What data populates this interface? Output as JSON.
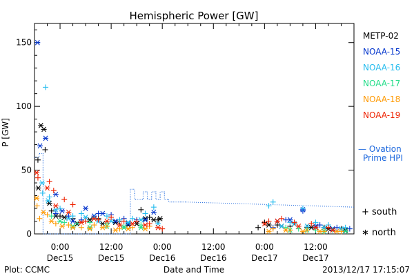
{
  "chart_data": {
    "type": "scatter",
    "title": "Hemispheric Power [GW]",
    "xlabel": "Date and Time",
    "ylabel": "P [GW]",
    "x_unit": "hours since 2013-12-14 18:00 UT",
    "xlim": [
      0,
      75
    ],
    "ylim": [
      0,
      165
    ],
    "y_ticks": [
      0,
      50,
      100,
      150
    ],
    "x_ticks": [
      {
        "x": 6,
        "time": "0:00",
        "date": "Dec15"
      },
      {
        "x": 18,
        "time": "12:00",
        "date": "Dec15"
      },
      {
        "x": 30,
        "time": "0:00",
        "date": "Dec16"
      },
      {
        "x": 42,
        "time": "12:00",
        "date": "Dec16"
      },
      {
        "x": 54,
        "time": "0:00",
        "date": "Dec17"
      },
      {
        "x": 66,
        "time": "12:00",
        "date": "Dec17"
      }
    ],
    "legend": [
      {
        "name": "METP-02",
        "color": "#000000"
      },
      {
        "name": "NOAA-15",
        "color": "#0033cc"
      },
      {
        "name": "NOAA-16",
        "color": "#22bbee"
      },
      {
        "name": "NOAA-17",
        "color": "#22dd88"
      },
      {
        "name": "NOAA-18",
        "color": "#ff9900"
      },
      {
        "name": "NOAA-19",
        "color": "#ee2200"
      }
    ],
    "ovation": {
      "label_line1": "— Ovation",
      "label_line2": "Prime HPI",
      "color": "#1a66dd",
      "value_y": 68,
      "solid_x": [
        0,
        1.1,
        1.1,
        2.0,
        2.0,
        22.5,
        22.5,
        23.5,
        23.5,
        25.5,
        25.5,
        26.5,
        26.5,
        27.5,
        27.5,
        28.5,
        28.5,
        29.5,
        29.5,
        30.5,
        30.5,
        31.5,
        31.5,
        35.5
      ],
      "solid_y": [
        60,
        60,
        63,
        63,
        0,
        0,
        35,
        35,
        27,
        27,
        33,
        33,
        27,
        27,
        33,
        33,
        27,
        27,
        33,
        33,
        27,
        27,
        25,
        25
      ],
      "dotted": [
        [
          35.5,
          25
        ],
        [
          75,
          21
        ]
      ]
    },
    "symbols_legend": [
      {
        "symbol": "+",
        "label": "south"
      },
      {
        "symbol": "∗",
        "label": "north"
      }
    ],
    "series": [
      {
        "name": "METP-02",
        "color": "#000000",
        "south": [
          [
            0.8,
            58
          ],
          [
            2.5,
            66
          ],
          [
            4,
            18
          ],
          [
            6,
            14
          ],
          [
            9,
            12
          ],
          [
            12,
            10
          ],
          [
            15,
            12
          ],
          [
            20,
            10
          ],
          [
            25,
            19
          ],
          [
            27,
            13
          ],
          [
            29,
            11
          ],
          [
            52.5,
            5
          ],
          [
            54,
            9
          ],
          [
            57,
            7
          ],
          [
            60,
            6
          ],
          [
            64,
            5
          ],
          [
            68,
            5
          ],
          [
            72,
            4
          ]
        ],
        "north": [
          [
            0.9,
            36
          ],
          [
            1.5,
            85
          ],
          [
            2.2,
            82
          ],
          [
            3.5,
            24
          ],
          [
            5,
            14
          ],
          [
            7,
            13
          ],
          [
            10,
            8
          ],
          [
            13,
            11
          ],
          [
            16,
            8
          ],
          [
            19,
            9
          ],
          [
            22,
            7
          ],
          [
            24,
            8
          ],
          [
            26,
            12
          ],
          [
            28,
            11
          ],
          [
            29.5,
            12
          ],
          [
            55,
            7
          ],
          [
            58,
            6
          ],
          [
            61,
            8
          ],
          [
            65,
            5
          ],
          [
            69,
            4
          ],
          [
            73,
            3
          ]
        ]
      },
      {
        "name": "NOAA-15",
        "color": "#0033cc",
        "south": [
          [
            5,
            16
          ],
          [
            8,
            14
          ],
          [
            11,
            11
          ],
          [
            15,
            16
          ],
          [
            18,
            15
          ],
          [
            21,
            12
          ],
          [
            24,
            11
          ],
          [
            56,
            5
          ],
          [
            59,
            11
          ],
          [
            63,
            18
          ],
          [
            67,
            7
          ],
          [
            71,
            5
          ],
          [
            74,
            4
          ]
        ],
        "north": [
          [
            0.7,
            150
          ],
          [
            1.3,
            69
          ],
          [
            2.6,
            75
          ],
          [
            5,
            31
          ],
          [
            6.5,
            18
          ],
          [
            9,
            10
          ],
          [
            12,
            20
          ],
          [
            14,
            14
          ],
          [
            16,
            16
          ],
          [
            19,
            10
          ],
          [
            22,
            8
          ],
          [
            26,
            11
          ],
          [
            28,
            17
          ],
          [
            57,
            10
          ],
          [
            60,
            11
          ],
          [
            63,
            19
          ],
          [
            66,
            6
          ],
          [
            70,
            4
          ]
        ]
      },
      {
        "name": "NOAA-16",
        "color": "#22bbee",
        "south": [
          [
            2.6,
            115
          ],
          [
            1.9,
            32
          ],
          [
            3.5,
            29
          ],
          [
            6,
            20
          ],
          [
            9,
            14
          ],
          [
            11,
            16
          ],
          [
            14,
            13
          ],
          [
            17,
            14
          ],
          [
            20,
            11
          ],
          [
            23,
            12
          ],
          [
            26,
            16
          ],
          [
            28,
            21
          ],
          [
            55,
            22
          ],
          [
            56,
            25
          ],
          [
            60,
            9
          ],
          [
            63,
            20
          ],
          [
            66,
            9
          ],
          [
            69,
            7
          ],
          [
            73,
            5
          ]
        ],
        "north": [
          [
            1.8,
            40
          ],
          [
            3.2,
            26
          ],
          [
            5,
            19
          ],
          [
            8,
            12
          ],
          [
            12,
            13
          ],
          [
            15,
            10
          ],
          [
            18,
            10
          ],
          [
            22,
            9
          ],
          [
            25,
            11
          ],
          [
            29,
            8
          ],
          [
            58,
            6
          ],
          [
            61,
            8
          ],
          [
            64,
            6
          ],
          [
            68,
            5
          ],
          [
            72,
            4
          ]
        ]
      },
      {
        "name": "NOAA-17",
        "color": "#22dd88",
        "south": [
          [
            4,
            14
          ],
          [
            7,
            9
          ],
          [
            10,
            8
          ],
          [
            13,
            9
          ],
          [
            17,
            8
          ],
          [
            21,
            6
          ],
          [
            25,
            7
          ],
          [
            59,
            5
          ],
          [
            62,
            4
          ],
          [
            66,
            3
          ],
          [
            70,
            3
          ]
        ],
        "north": [
          [
            6,
            10
          ],
          [
            9,
            6
          ],
          [
            13,
            5
          ],
          [
            17,
            6
          ],
          [
            21,
            5
          ],
          [
            25,
            5
          ],
          [
            60,
            3
          ],
          [
            64,
            3
          ],
          [
            68,
            2
          ],
          [
            73,
            2
          ]
        ]
      },
      {
        "name": "NOAA-18",
        "color": "#ff9900",
        "south": [
          [
            0.6,
            22
          ],
          [
            1.2,
            12
          ],
          [
            3,
            15
          ],
          [
            5,
            8
          ],
          [
            8,
            7
          ],
          [
            11,
            5
          ],
          [
            14,
            7
          ],
          [
            17,
            6
          ],
          [
            20,
            4
          ],
          [
            23,
            5
          ],
          [
            27,
            6
          ],
          [
            56,
            4
          ],
          [
            60,
            3
          ],
          [
            64,
            3
          ],
          [
            68,
            2
          ],
          [
            72,
            2
          ]
        ],
        "north": [
          [
            0.5,
            28
          ],
          [
            2.1,
            17
          ],
          [
            4,
            10
          ],
          [
            6.5,
            6
          ],
          [
            9,
            5
          ],
          [
            13,
            4
          ],
          [
            16,
            5
          ],
          [
            19,
            3
          ],
          [
            22,
            4
          ],
          [
            26,
            4
          ],
          [
            55,
            2
          ],
          [
            59,
            3
          ],
          [
            63,
            2
          ],
          [
            67,
            2
          ],
          [
            71,
            2
          ]
        ]
      },
      {
        "name": "NOAA-19",
        "color": "#ee2200",
        "south": [
          [
            0.8,
            44
          ],
          [
            3.5,
            41
          ],
          [
            4.5,
            34
          ],
          [
            7,
            27
          ],
          [
            9,
            23
          ],
          [
            12,
            10
          ],
          [
            15,
            11
          ],
          [
            18,
            13
          ],
          [
            21,
            10
          ],
          [
            24,
            10
          ],
          [
            27,
            8
          ],
          [
            30,
            4
          ],
          [
            55,
            10
          ],
          [
            58,
            12
          ],
          [
            61,
            9
          ],
          [
            65,
            8
          ],
          [
            69,
            5
          ]
        ],
        "north": [
          [
            0.5,
            48
          ],
          [
            3,
            36
          ],
          [
            5,
            22
          ],
          [
            8,
            17
          ],
          [
            11,
            9
          ],
          [
            14,
            12
          ],
          [
            17,
            10
          ],
          [
            20,
            7
          ],
          [
            23,
            8
          ],
          [
            26,
            7
          ],
          [
            29,
            5
          ],
          [
            54,
            8
          ],
          [
            57,
            10
          ],
          [
            62,
            6
          ],
          [
            66,
            5
          ],
          [
            70,
            3
          ]
        ]
      }
    ]
  },
  "footer": {
    "plot_credit": "Plot: CCMC",
    "timestamp": "2013/12/17 17:15:07"
  }
}
